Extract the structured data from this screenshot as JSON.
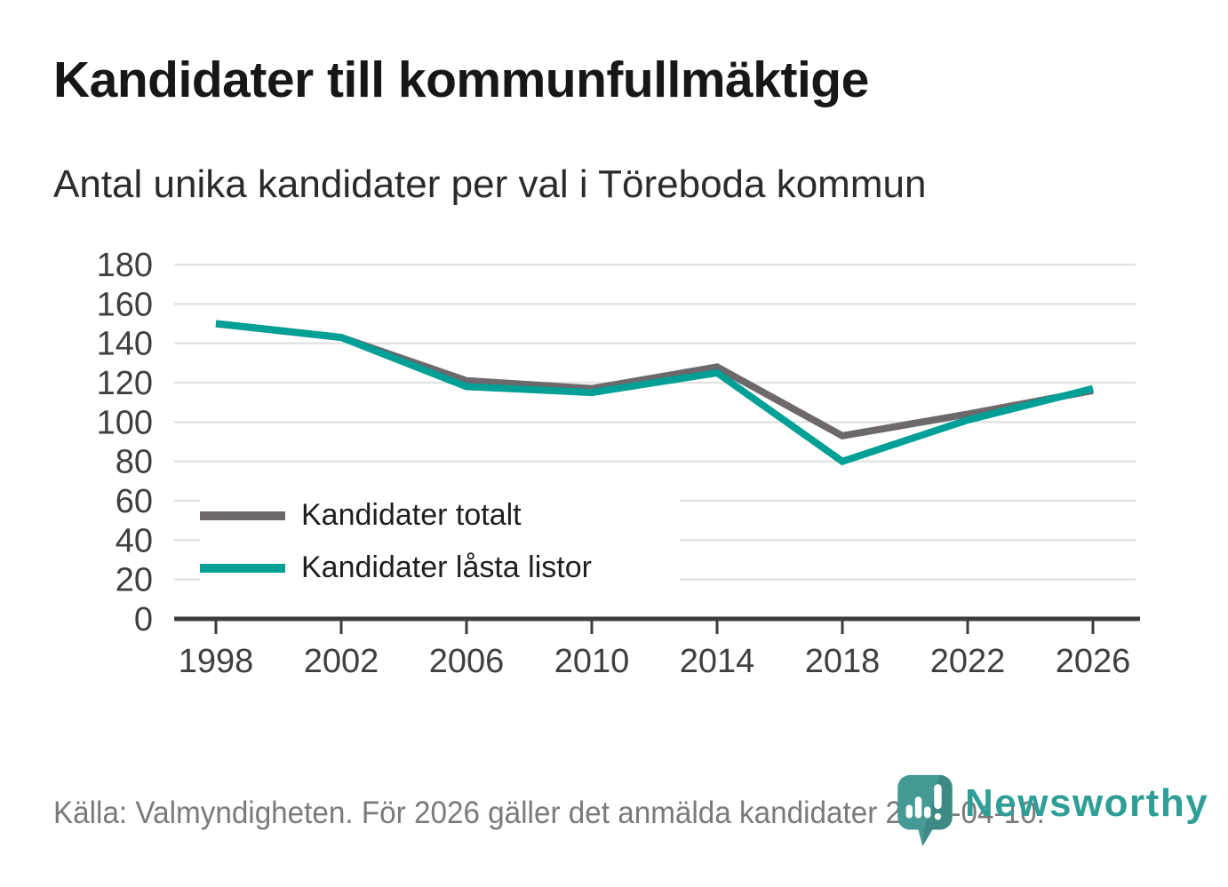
{
  "header": {
    "title": "Kandidater till kommunfullmäktige",
    "subtitle": "Antal unika kandidater per val i Töreboda kommun"
  },
  "legend": [
    {
      "label": "Kandidater totalt",
      "color": "#6d686c"
    },
    {
      "label": "Kandidater låsta listor",
      "color": "#00a096"
    }
  ],
  "footer": {
    "source": "Källa: Valmyndigheten. För 2026 gäller det anmälda kandidater 2026-04-10.",
    "brand": "Newsworthy"
  },
  "colors": {
    "series_total": "#6d686c",
    "series_locked": "#00a096",
    "brand_teal": "#2f9e96",
    "logo_pin": "#459a95",
    "grid": "#e3e3e3",
    "axis": "#3d3d3d",
    "tick_text": "#3f3f3f",
    "title_text": "#171715",
    "muted_text": "#7a7a7a"
  },
  "icons": {
    "logo": "newsworthy-pin-barchart-icon"
  },
  "chart_data": {
    "type": "line",
    "title": "Kandidater till kommunfullmäktige",
    "subtitle": "Antal unika kandidater per val i Töreboda kommun",
    "x": [
      1998,
      2002,
      2006,
      2010,
      2014,
      2018,
      2022,
      2026
    ],
    "series": [
      {
        "name": "Kandidater totalt",
        "color": "#6d686c",
        "values": [
          150,
          143,
          121,
          117,
          128,
          93,
          104,
          116
        ]
      },
      {
        "name": "Kandidater låsta listor",
        "color": "#00a096",
        "values": [
          150,
          143,
          118,
          115,
          125,
          80,
          101,
          117
        ]
      }
    ],
    "xlabel": "",
    "ylabel": "",
    "ylim": [
      0,
      180
    ],
    "ytick_step": 20,
    "grid": "horizontal",
    "legend_position": "inside-bottom-left"
  }
}
